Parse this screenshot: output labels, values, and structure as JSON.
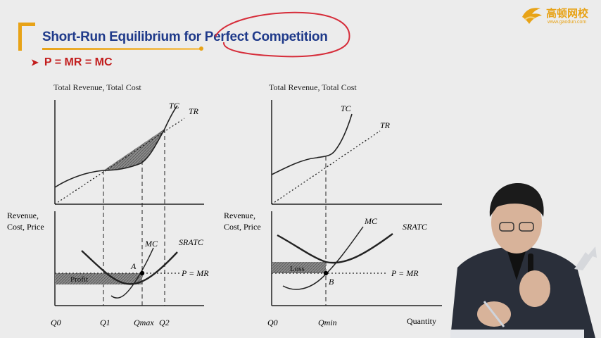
{
  "slide": {
    "title": "Short-Run Equilibrium for Perfect Competition",
    "bullet": "P = MR = MC",
    "logo": {
      "name": "高顿网校",
      "url": "www.gaodun.com"
    }
  },
  "left_chart": {
    "top_axis_label": "Total Revenue, Total Cost",
    "bottom_axis_label_line1": "Revenue,",
    "bottom_axis_label_line2": "Cost, Price",
    "curve_tc": "TC",
    "curve_tr": "TR",
    "curve_mc": "MC",
    "curve_sratc": "SRATC",
    "point_a": "A",
    "price_line": "P = MR",
    "area_label": "Profit",
    "x_ticks": [
      "Q0",
      "Q1",
      "Qmax",
      "Q2"
    ]
  },
  "right_chart": {
    "top_axis_label": "Total Revenue, Total Cost",
    "bottom_axis_label_line1": "Revenue,",
    "bottom_axis_label_line2": "Cost, Price",
    "curve_tc": "TC",
    "curve_tr": "TR",
    "curve_mc": "MC",
    "curve_sratc": "SRATC",
    "point_b": "B",
    "price_line": "P = MR",
    "area_label": "Loss",
    "x_ticks": [
      "Q0",
      "Qmin"
    ],
    "x_axis_label": "Quantity"
  },
  "colors": {
    "title": "#1f3a8a",
    "bullet": "#c21d1d",
    "accent": "#e8a317",
    "annotation": "#d62d3a",
    "background": "#ececec"
  }
}
